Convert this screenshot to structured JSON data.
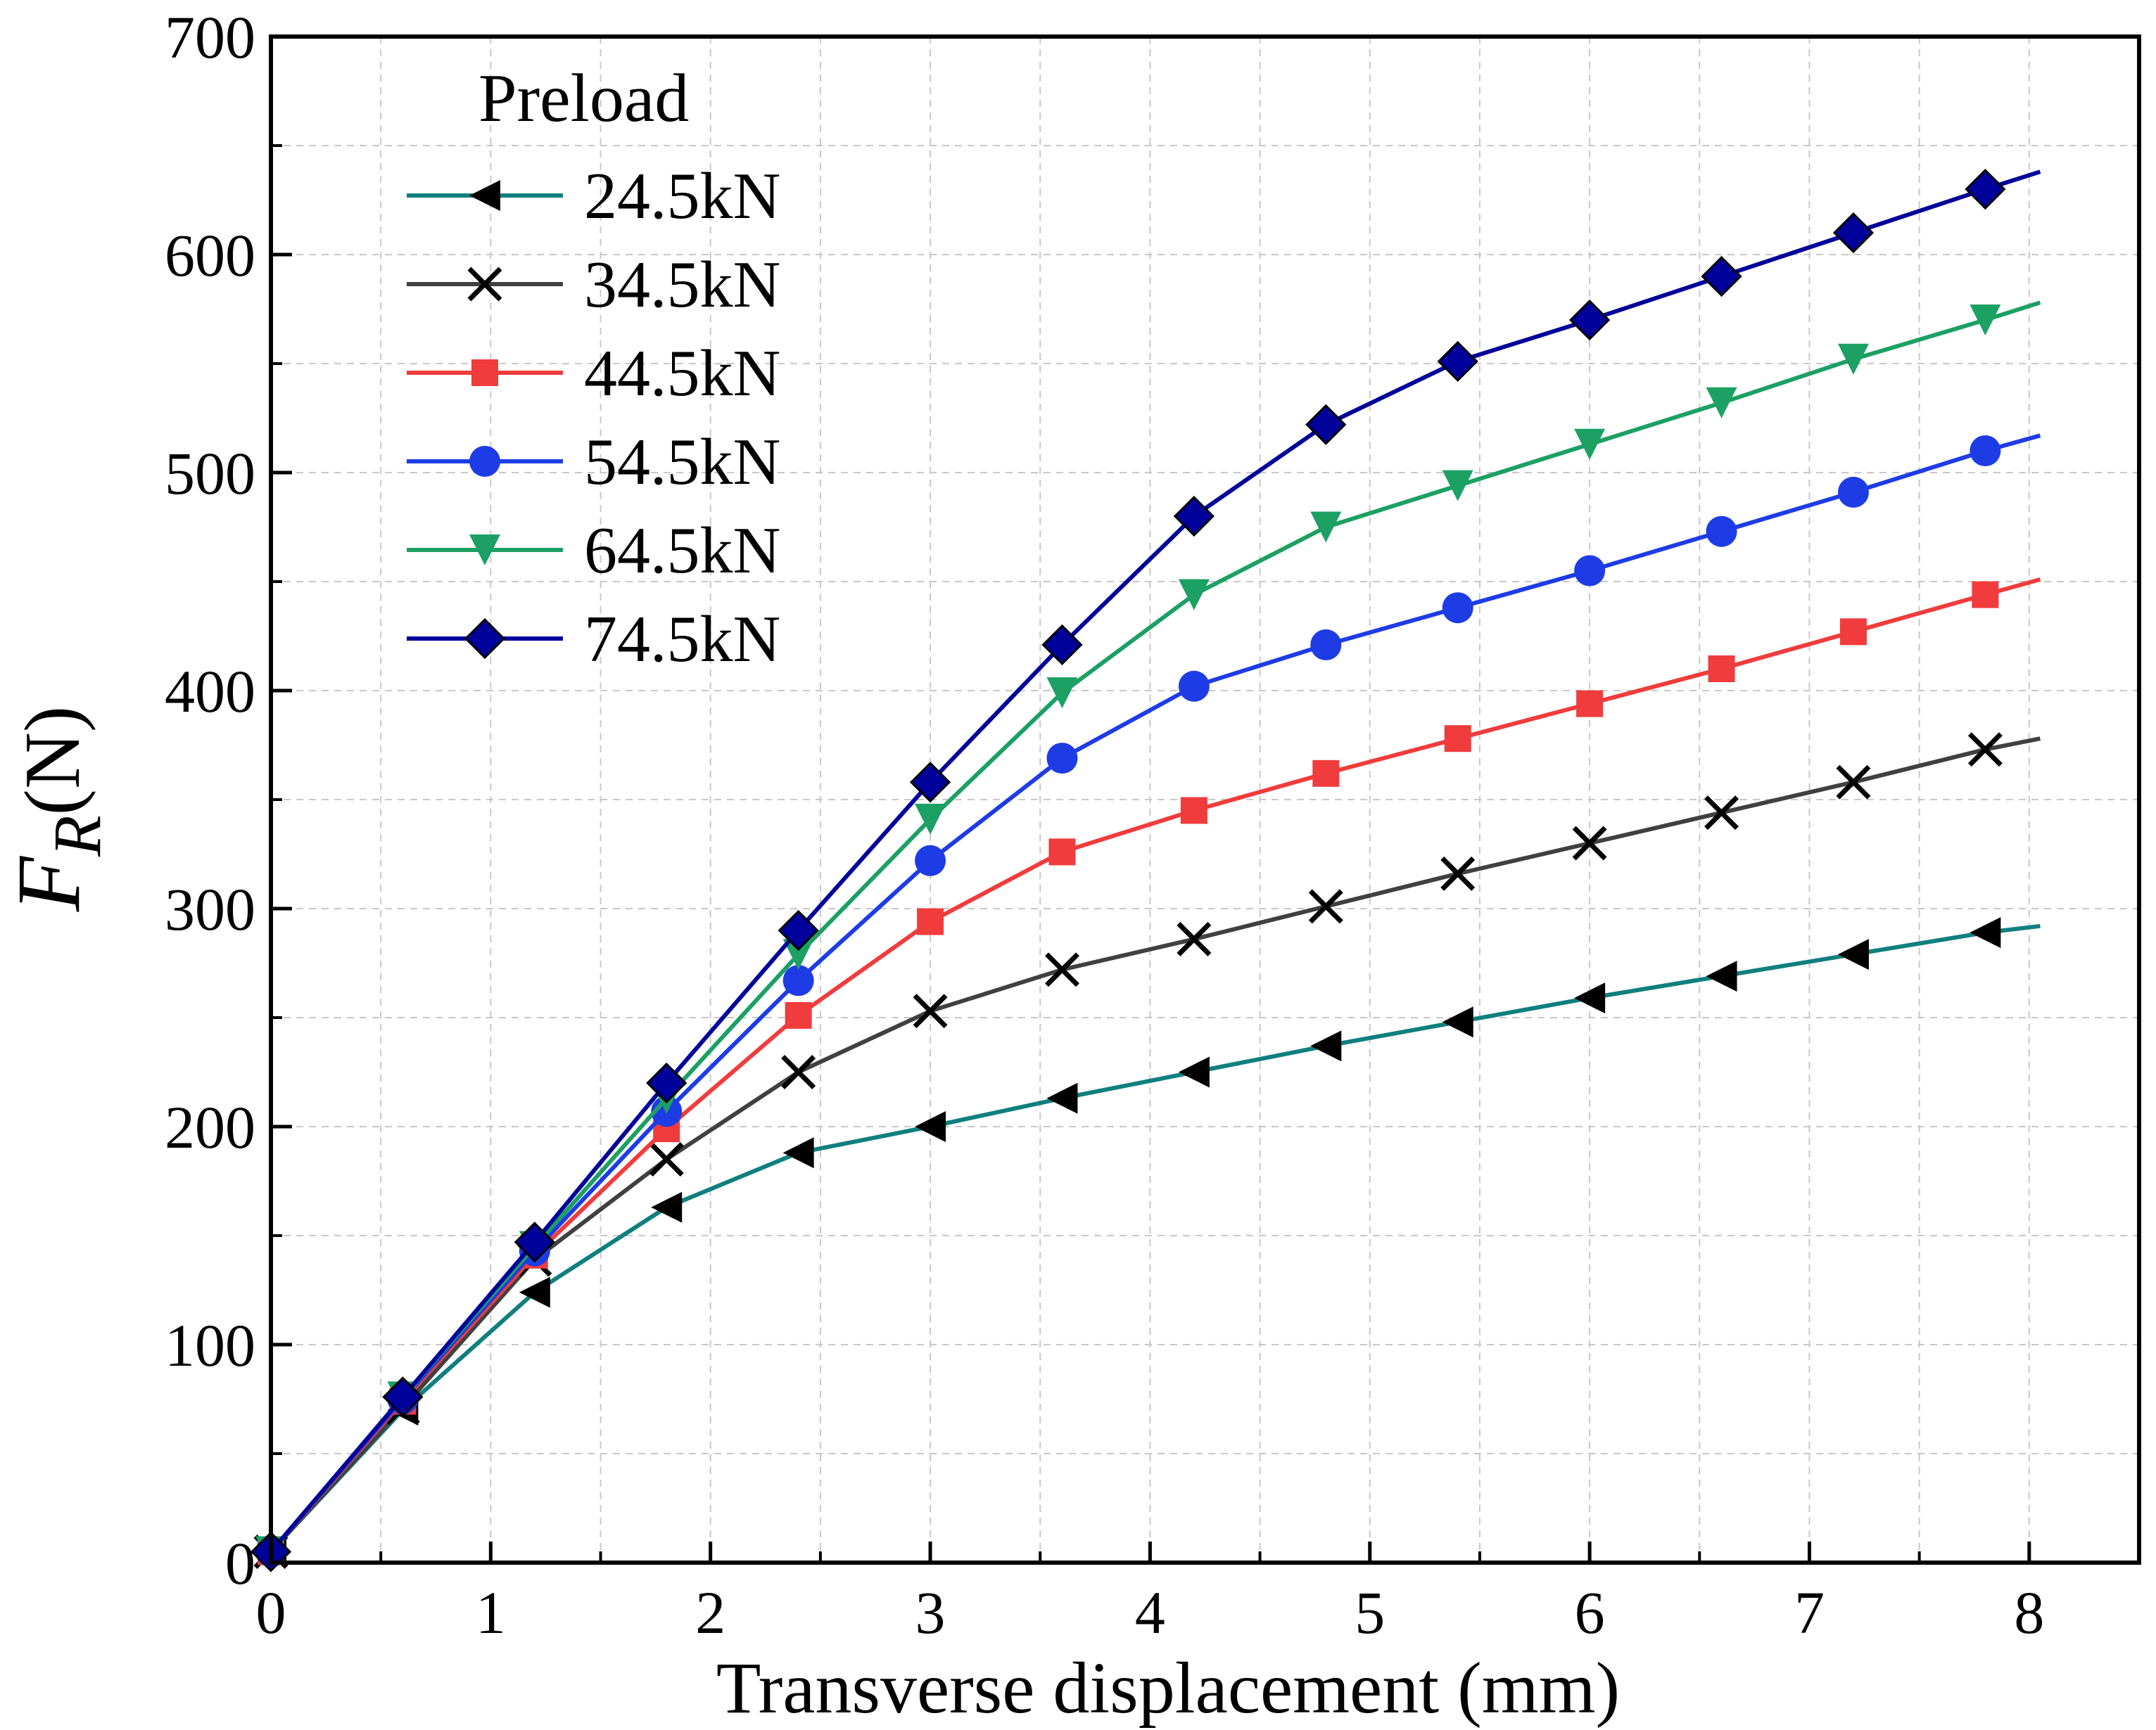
{
  "chart_data": {
    "type": "line",
    "xlabel": "Transverse displacement (mm)",
    "ylabel": {
      "main": "F",
      "sub": "R",
      "unit": "(N)"
    },
    "xlim": [
      0,
      8.5
    ],
    "ylim": [
      0,
      700
    ],
    "x_ticks": [
      "0",
      "1",
      "2",
      "3",
      "4",
      "5",
      "6",
      "7",
      "8"
    ],
    "y_ticks": [
      "0",
      "100",
      "200",
      "300",
      "400",
      "500",
      "600",
      "700"
    ],
    "grid": true,
    "legend": {
      "title": "Preload",
      "position": "top-left"
    },
    "x": [
      0,
      0.6,
      1.2,
      1.8,
      2.4,
      3.0,
      3.6,
      4.2,
      4.8,
      5.4,
      6.0,
      6.6,
      7.2,
      7.8
    ],
    "x_end": 8.05,
    "series": [
      {
        "name": "24.5kN",
        "color": "#0f7f7f",
        "marker": "triangle-left",
        "values": [
          5,
          70,
          124,
          163,
          188,
          200,
          213,
          225,
          237,
          248,
          259,
          269,
          279,
          289
        ],
        "end_value": 292
      },
      {
        "name": "34.5kN",
        "color": "#404040",
        "marker": "cross",
        "values": [
          5,
          71,
          139,
          185,
          225,
          253,
          272,
          286,
          301,
          316,
          330,
          344,
          358,
          373
        ],
        "end_value": 378
      },
      {
        "name": "44.5kN",
        "color": "#f03c3c",
        "marker": "square",
        "values": [
          5,
          74,
          141,
          199,
          251,
          294,
          326,
          345,
          362,
          378,
          394,
          410,
          427,
          444
        ],
        "end_value": 451
      },
      {
        "name": "54.5kN",
        "color": "#1e3ce6",
        "marker": "circle",
        "values": [
          5,
          75,
          143,
          207,
          267,
          322,
          369,
          402,
          421,
          438,
          455,
          473,
          491,
          510
        ],
        "end_value": 517
      },
      {
        "name": "64.5kN",
        "color": "#1ca064",
        "marker": "triangle-down",
        "values": [
          5,
          76,
          145,
          213,
          279,
          341,
          399,
          444,
          475,
          494,
          513,
          532,
          552,
          570
        ],
        "end_value": 578
      },
      {
        "name": "74.5kN",
        "color": "#00009a",
        "marker": "diamond",
        "values": [
          5,
          76,
          147,
          220,
          290,
          358,
          421,
          480,
          522,
          551,
          570,
          590,
          610,
          630
        ],
        "end_value": 638
      }
    ]
  }
}
